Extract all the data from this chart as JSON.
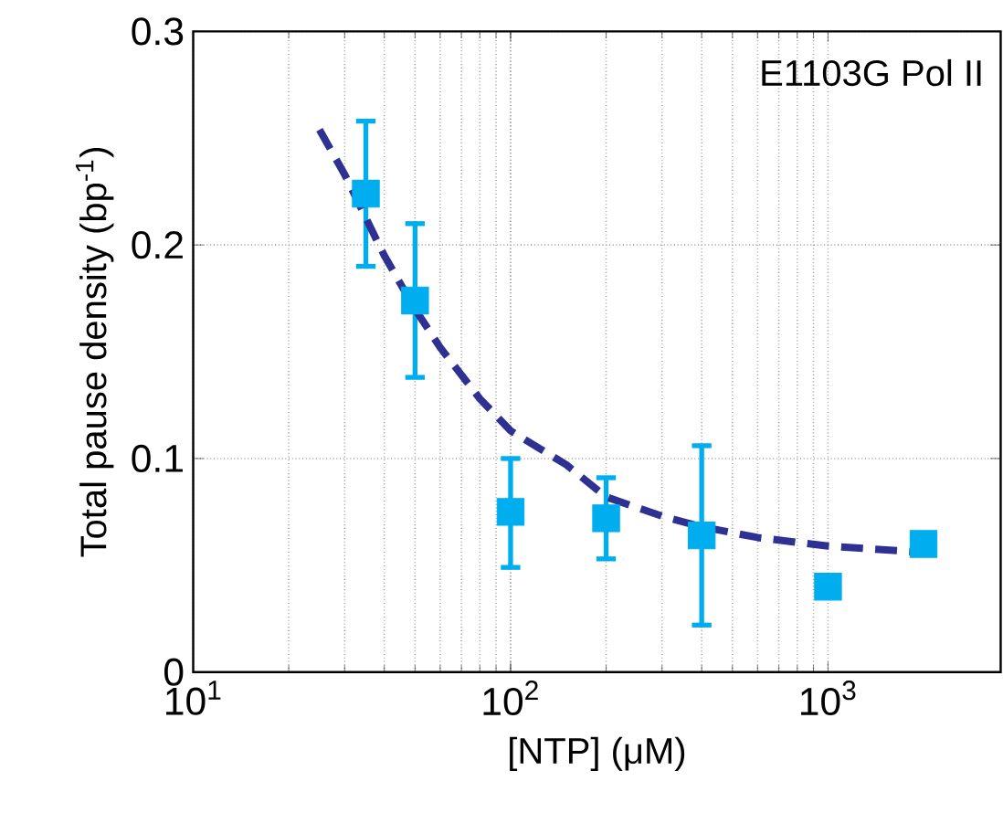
{
  "chart_data": {
    "type": "scatter",
    "xlabel": "[NTP] (μM)",
    "ylabel": "Total pause density (bp$^{-1}$)",
    "annotations": [
      "E1103G Pol II"
    ],
    "log": "x",
    "xlim": [
      10,
      3500
    ],
    "ylim": [
      0,
      0.3
    ],
    "xticks": [
      {
        "value": 10,
        "label": "10$^{1}$"
      },
      {
        "value": 100,
        "label": "10$^{2}$"
      },
      {
        "value": 1000,
        "label": "10$^{3}$"
      }
    ],
    "yticks": [
      0,
      0.1,
      0.2,
      0.3
    ],
    "grid": true,
    "marker": "square",
    "series": [
      {
        "color": "#00aeef",
        "x": [
          35,
          50,
          100,
          200,
          400,
          1000,
          2000
        ],
        "values": [
          0.224,
          0.174,
          0.075,
          0.072,
          0.064,
          0.04,
          0.06
        ],
        "errors": [
          [
            0.19,
            0.258
          ],
          [
            0.138,
            0.21
          ],
          [
            0.049,
            0.1
          ],
          [
            0.053,
            0.091
          ],
          [
            0.022,
            0.106
          ],
          null,
          [
            0.055,
            0.065
          ]
        ]
      },
      {
        "type": "line",
        "color": "#2e3192",
        "line_style": "dashed",
        "marker": "none",
        "x": [
          25,
          30,
          40,
          50,
          60,
          80,
          100,
          150,
          200,
          300,
          400,
          600,
          1000,
          2000
        ],
        "values": [
          0.254,
          0.233,
          0.195,
          0.17,
          0.152,
          0.128,
          0.113,
          0.097,
          0.082,
          0.073,
          0.068,
          0.063,
          0.059,
          0.056
        ]
      }
    ]
  }
}
